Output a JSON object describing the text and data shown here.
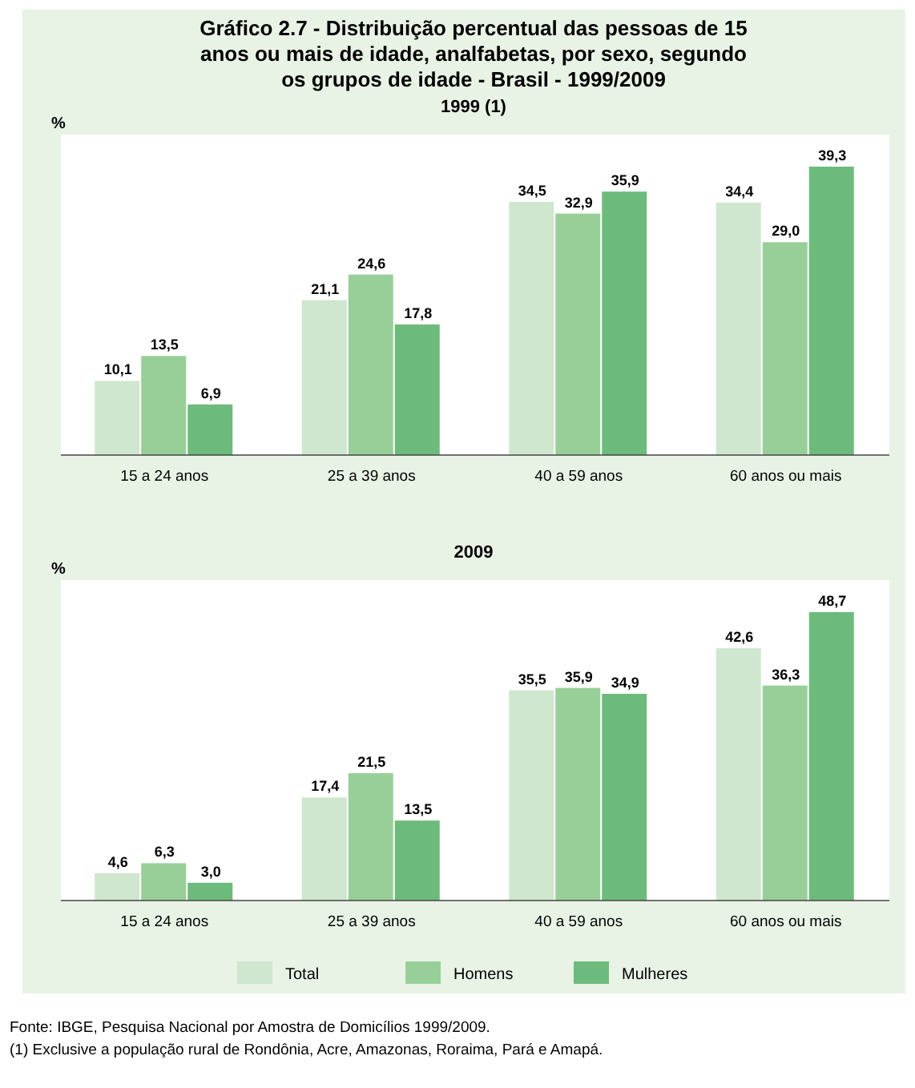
{
  "chart_data": [
    {
      "type": "bar",
      "title": "Gráfico 2.7 - Distribuição percentual das pessoas de 15 anos ou mais de idade, analfabetas, por sexo, segundo os grupos de idade - Brasil - 1999/2009",
      "subtitle": "1999 (1)",
      "ylabel": "%",
      "categories": [
        "15 a 24 anos",
        "25 a 39 anos",
        "40 a 59 anos",
        "60 anos ou mais"
      ],
      "tick_labels": "x",
      "series": [
        {
          "color": "#cfe6cf",
          "values": [
            10.1,
            21.1,
            34.5,
            34.4
          ],
          "value_labels": [
            "10,1",
            "21,1",
            "34,5",
            "34,4"
          ]
        },
        {
          "color": "#98cf98",
          "values": [
            13.5,
            24.6,
            32.9,
            29.0
          ],
          "value_labels": [
            "13,5",
            "24,6",
            "32,9",
            "29,0"
          ]
        },
        {
          "color": "#6dbb7c",
          "values": [
            6.9,
            17.8,
            35.9,
            39.3
          ],
          "value_labels": [
            "6,9",
            "17,8",
            "35,9",
            "39,3"
          ]
        }
      ]
    },
    {
      "type": "bar",
      "title": "2009",
      "ylabel": "%",
      "categories": [
        "15 a 24 anos",
        "25 a 39 anos",
        "40 a 59 anos",
        "60 anos ou mais"
      ],
      "tick_labels": "x",
      "legend": "bottom",
      "series": [
        {
          "name": "Total",
          "color": "#cfe6cf",
          "values": [
            4.6,
            17.4,
            35.5,
            42.6
          ],
          "value_labels": [
            "4,6",
            "17,4",
            "35,5",
            "42,6"
          ]
        },
        {
          "name": "Homens",
          "color": "#98cf98",
          "values": [
            6.3,
            21.5,
            35.9,
            36.3
          ],
          "value_labels": [
            "6,3",
            "21,5",
            "35,9",
            "36,3"
          ]
        },
        {
          "name": "Mulheres",
          "color": "#6dbb7c",
          "values": [
            3.0,
            13.5,
            34.9,
            48.7
          ],
          "value_labels": [
            "3,0",
            "13,5",
            "34,9",
            "48,7"
          ]
        }
      ],
      "annotations": [
        "Fonte: IBGE, Pesquisa Nacional por Amostra de Domicílios 1999/2009.",
        "(1) Exclusive a população rural de Rondônia, Acre, Amazonas, Roraima, Pará e Amapá."
      ]
    }
  ]
}
